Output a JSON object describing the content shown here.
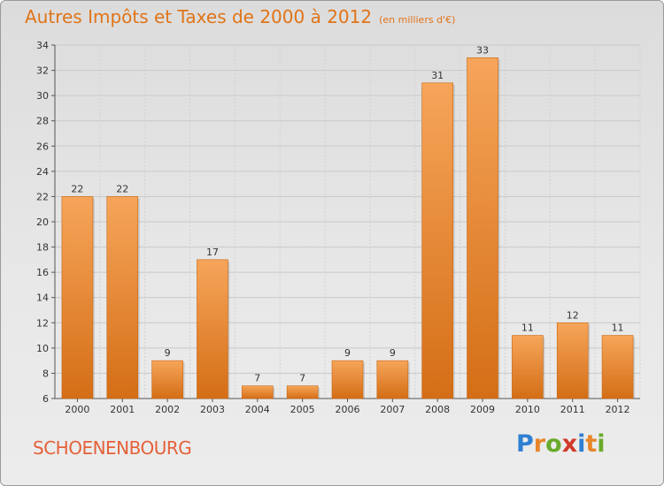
{
  "header": {
    "title": "Autres Impôts et Taxes de 2000 à 2012",
    "unit": "(en milliers d'€)"
  },
  "footer": {
    "commune": "SCHOENENBOURG",
    "logo_letters": [
      "P",
      "r",
      "o",
      "x",
      "i",
      "t",
      "i"
    ],
    "logo_colors": [
      "#2f7fd2",
      "#e8862a",
      "#6aaa2c",
      "#d23a2c",
      "#2f7fd2",
      "#e8862a",
      "#6aaa2c"
    ]
  },
  "colors": {
    "bar_top": "#f6a55a",
    "bar_bottom": "#d46e16",
    "title": "#e07418",
    "label": "#333333"
  },
  "chart_data": {
    "type": "bar",
    "title": "Autres Impôts et Taxes de 2000 à 2012",
    "subtitle": "(en milliers d'€)",
    "categories": [
      "2000",
      "2001",
      "2002",
      "2003",
      "2004",
      "2005",
      "2006",
      "2007",
      "2008",
      "2009",
      "2010",
      "2011",
      "2012"
    ],
    "values": [
      22,
      22,
      9,
      17,
      7,
      7,
      9,
      9,
      31,
      33,
      11,
      12,
      11
    ],
    "ylim": [
      6,
      34
    ],
    "yticks": [
      6,
      8,
      10,
      12,
      14,
      16,
      18,
      20,
      22,
      24,
      26,
      28,
      30,
      32,
      34
    ],
    "grid": true,
    "legend": "none"
  }
}
